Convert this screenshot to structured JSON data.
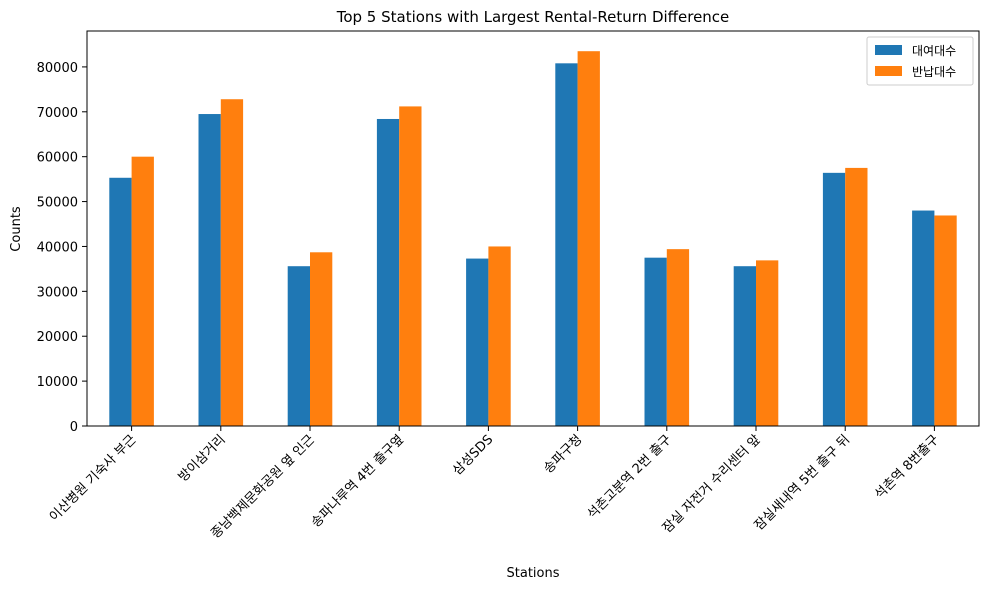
{
  "chart_data": {
    "type": "bar",
    "title": "Top 5 Stations with Largest Rental-Return Difference",
    "xlabel": "Stations",
    "ylabel": "Counts",
    "ylim": [
      0,
      88000
    ],
    "yticks": [
      0,
      10000,
      20000,
      30000,
      40000,
      50000,
      60000,
      70000,
      80000
    ],
    "grid": false,
    "legend_position": "top-right",
    "categories": [
      "이산병원 기숙사 부근",
      "방이삼거리",
      "종남백제문화공원 옆 인근",
      "송파나루역 4번 출구옆",
      "삼성SDS",
      "송파구청",
      "석촌고분역 2번 출구",
      "잠실 자전거 수리센터 앞",
      "잠실새내역 5번 출구 뒤",
      "석촌역 8번출구"
    ],
    "series": [
      {
        "name": "대여대수",
        "color": "#1f77b4",
        "values": [
          55300,
          69500,
          35600,
          68400,
          37300,
          80800,
          37500,
          35600,
          56400,
          48000
        ]
      },
      {
        "name": "반납대수",
        "color": "#ff7f0e",
        "values": [
          60000,
          72800,
          38700,
          71200,
          40000,
          83500,
          39400,
          36900,
          57500,
          46900
        ]
      }
    ]
  }
}
